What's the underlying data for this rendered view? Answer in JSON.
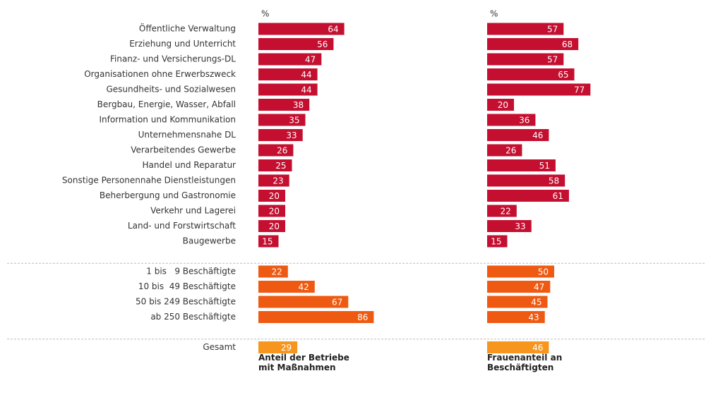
{
  "chart_data": {
    "type": "bar",
    "orientation": "horizontal",
    "unit": "%",
    "categories": [
      "Öffentliche Verwaltung",
      "Erziehung und Unterricht",
      "Finanz- und Versicherungs-DL",
      "Organisationen ohne Erwerbszweck",
      "Gesundheits- und Sozialwesen",
      "Bergbau, Energie, Wasser, Abfall",
      "Information und Kommunikation",
      "Unternehmensnahe DL",
      "Verarbeitendes Gewerbe",
      "Handel und Reparatur",
      "Sonstige Personennahe Dienstleistungen",
      "Beherbergung und Gastronomie",
      "Verkehr und Lagerei",
      "Land- und Forstwirtschaft",
      "Baugewerbe",
      "1 bis   9 Beschäftigte",
      "10 bis  49 Beschäftigte",
      "50 bis 249 Beschäftigte",
      "ab 250 Beschäftigte",
      "Gesamt"
    ],
    "colors": [
      "#c40f30",
      "#c40f30",
      "#c40f30",
      "#c40f30",
      "#c40f30",
      "#c40f30",
      "#c40f30",
      "#c40f30",
      "#c40f30",
      "#c40f30",
      "#c40f30",
      "#c40f30",
      "#c40f30",
      "#c40f30",
      "#c40f30",
      "#ee5a12",
      "#ee5a12",
      "#ee5a12",
      "#ee5a12",
      "#f7961e"
    ],
    "series": [
      {
        "name": "Anteil der Betriebe mit Maßnahmen",
        "values": [
          64,
          56,
          47,
          44,
          44,
          38,
          35,
          33,
          26,
          25,
          23,
          20,
          20,
          20,
          15,
          22,
          42,
          67,
          86,
          29
        ]
      },
      {
        "name": "Frauenanteil an Beschäftigten",
        "values": [
          57,
          68,
          57,
          65,
          77,
          20,
          36,
          46,
          26,
          51,
          58,
          61,
          22,
          33,
          15,
          50,
          47,
          45,
          43,
          46
        ]
      }
    ]
  }
}
